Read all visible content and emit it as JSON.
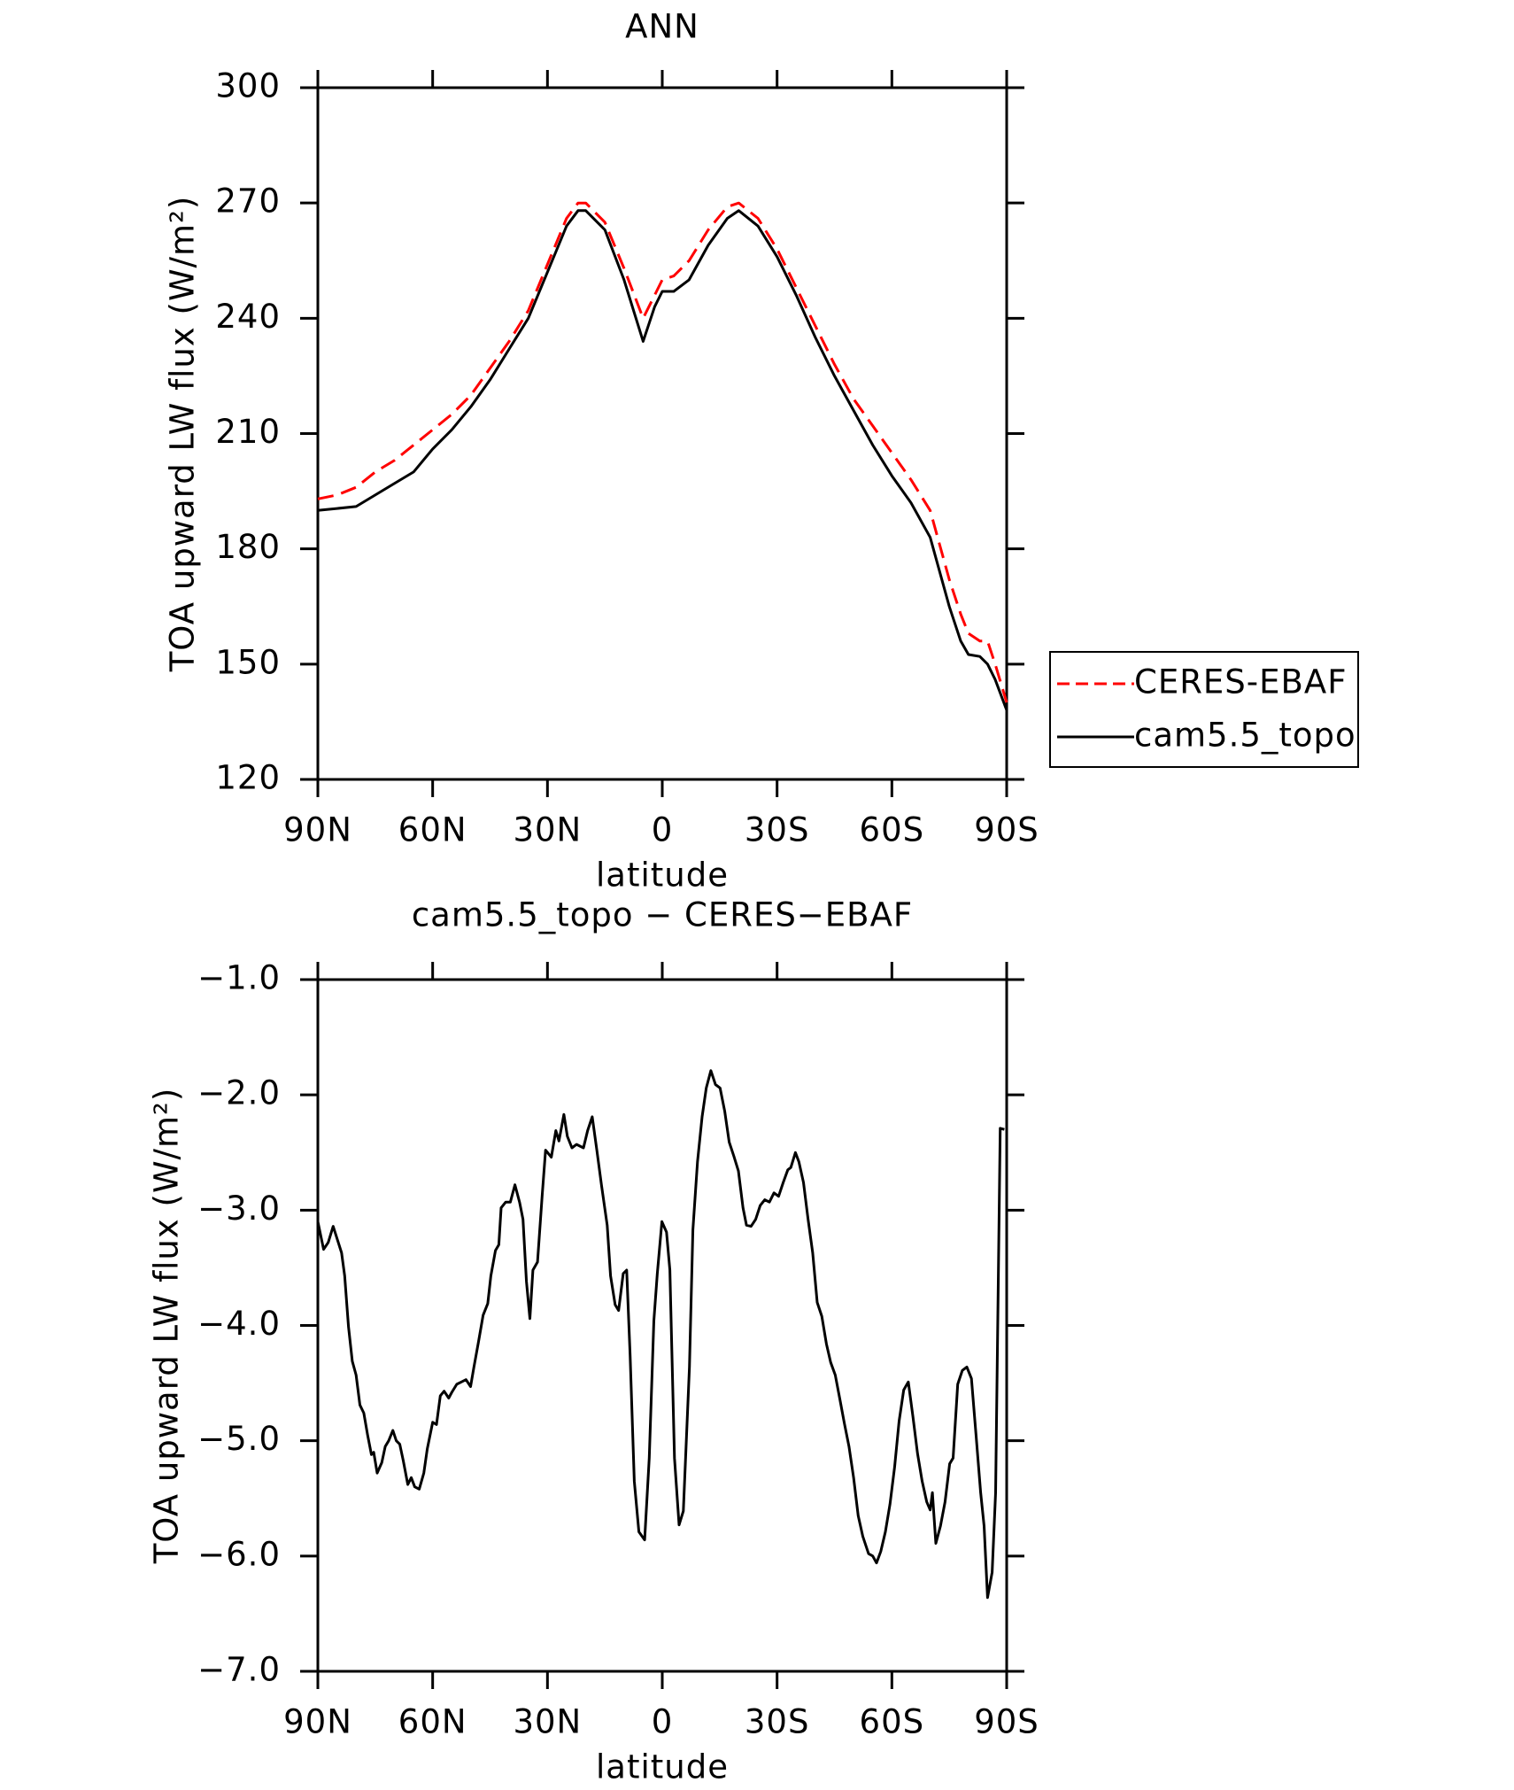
{
  "chart_data": [
    {
      "type": "line",
      "title": "ANN",
      "xlabel": "latitude",
      "ylabel": "TOA upward LW flux (W/m²)",
      "xlim": [
        90,
        -90
      ],
      "ylim": [
        120,
        300
      ],
      "xticks": [
        {
          "value": 90,
          "label": "90N"
        },
        {
          "value": 60,
          "label": "60N"
        },
        {
          "value": 30,
          "label": "30N"
        },
        0,
        {
          "value": -30,
          "label": "30S"
        },
        {
          "value": -60,
          "label": "60S"
        },
        {
          "value": -90,
          "label": "90S"
        }
      ],
      "yticks": [
        120,
        150,
        180,
        210,
        240,
        270,
        300
      ],
      "legend": "right",
      "x": [
        90,
        85,
        80,
        75,
        70,
        65,
        60,
        55,
        50,
        45,
        40,
        35,
        30,
        25,
        22,
        20,
        15,
        10,
        5,
        2,
        0,
        -3,
        -7,
        -12,
        -17,
        -20,
        -25,
        -30,
        -35,
        -40,
        -45,
        -50,
        -55,
        -60,
        -65,
        -70,
        -75,
        -78,
        -80,
        -83,
        -85,
        -87,
        -90
      ],
      "series": [
        {
          "name": "CERES-EBAF",
          "color": "#ff0000",
          "dash": true,
          "values": [
            193,
            194,
            196,
            200,
            203,
            207,
            211,
            215,
            220,
            227,
            234,
            242,
            254,
            266,
            270,
            270,
            265,
            253,
            240,
            246,
            250,
            251,
            255,
            263,
            269,
            270,
            266,
            258,
            248,
            238,
            228,
            219,
            212,
            205,
            198,
            190,
            172,
            163,
            158,
            156,
            156,
            150,
            140
          ]
        },
        {
          "name": "cam5.5_topo",
          "color": "#000000",
          "dash": false,
          "values": [
            190,
            190.5,
            191,
            194,
            197,
            200,
            206,
            211,
            217,
            224,
            232,
            240,
            252,
            264,
            268,
            268,
            263,
            250,
            234,
            243,
            247,
            247,
            250,
            259,
            266,
            268,
            264,
            256,
            246,
            235,
            225,
            216,
            207,
            199,
            192,
            183,
            165,
            156,
            152.5,
            152,
            150,
            146,
            138
          ]
        }
      ]
    },
    {
      "type": "line",
      "title": "cam5.5_topo − CERES−EBAF",
      "xlabel": "latitude",
      "ylabel": "TOA upward LW flux (W/m²)",
      "xlim": [
        90,
        -90
      ],
      "ylim": [
        -7,
        -1
      ],
      "xticks": [
        {
          "value": 90,
          "label": "90N"
        },
        {
          "value": 60,
          "label": "60N"
        },
        {
          "value": 30,
          "label": "30N"
        },
        0,
        {
          "value": -30,
          "label": "30S"
        },
        {
          "value": -60,
          "label": "60S"
        },
        {
          "value": -90,
          "label": "90S"
        }
      ],
      "yticks": [
        {
          "value": -7,
          "label": "−7.0"
        },
        {
          "value": -6,
          "label": "−6.0"
        },
        {
          "value": -5,
          "label": "−5.0"
        },
        {
          "value": -4,
          "label": "−4.0"
        },
        {
          "value": -3,
          "label": "−3.0"
        },
        {
          "value": -2,
          "label": "−2.0"
        },
        {
          "value": -1,
          "label": "−1.0"
        }
      ],
      "color": "#000000",
      "x": [
        90,
        88.5,
        87.3,
        86,
        83.8,
        83,
        82,
        81,
        80,
        79,
        78,
        77,
        76,
        75.4,
        74.5,
        73.3,
        72.4,
        71.5,
        70.4,
        69.5,
        68.6,
        67.7,
        66.5,
        65.6,
        64.7,
        63.5,
        62.3,
        61.4,
        60,
        59,
        58,
        57,
        55.8,
        55,
        53.7,
        52.5,
        51.3,
        50.1,
        49.2,
        48,
        46.8,
        45.6,
        44.8,
        43.6,
        42.7,
        42.1,
        40.9,
        39.7,
        38.5,
        37.3,
        36.4,
        35.5,
        34.6,
        33.8,
        32.6,
        31.4,
        30.5,
        29,
        27.8,
        27,
        25.7,
        24.8,
        23.6,
        22.4,
        20.6,
        19.5,
        18.3,
        17.1,
        15.9,
        14.4,
        13.5,
        12.3,
        11.4,
        10.2,
        9.3,
        8.4,
        7.3,
        6.1,
        4.6,
        3.4,
        2.2,
        1.3,
        0.1,
        -1.1,
        -2,
        -3.2,
        -4.4,
        -5.5,
        -7.1,
        -8,
        -9.2,
        -10.4,
        -11.5,
        -12.7,
        -13.9,
        -15.1,
        -16.3,
        -17.5,
        -18.7,
        -19.9,
        -21.1,
        -22,
        -23.2,
        -24.4,
        -25.6,
        -26.8,
        -28,
        -29.2,
        -30.4,
        -31.6,
        -32.8,
        -33.6,
        -34.8,
        -35.7,
        -36.9,
        -38.1,
        -39.3,
        -40.5,
        -41.7,
        -42.9,
        -44,
        -45.2,
        -46.4,
        -47.6,
        -48.8,
        -50,
        -51.2,
        -52.4,
        -53.9,
        -55,
        -56,
        -57.1,
        -58.3,
        -59.5,
        -60.7,
        -61.9,
        -63.1,
        -64.3,
        -65.5,
        -66.7,
        -67.9,
        -69.1,
        -70,
        -70.6,
        -71.5,
        -72.7,
        -73.9,
        -75.1,
        -76,
        -77.2,
        -78.4,
        -79.6,
        -80.8,
        -82,
        -83.2,
        -84.1,
        -85,
        -86.2,
        -87.1,
        -88.3,
        -89.4
      ],
      "values": [
        -3.1,
        -3.34,
        -3.28,
        -3.14,
        -3.37,
        -3.57,
        -4.01,
        -4.31,
        -4.43,
        -4.69,
        -4.76,
        -4.95,
        -5.12,
        -5.1,
        -5.28,
        -5.19,
        -5.05,
        -5,
        -4.91,
        -5,
        -5.03,
        -5.17,
        -5.38,
        -5.32,
        -5.4,
        -5.42,
        -5.28,
        -5.07,
        -4.84,
        -4.86,
        -4.61,
        -4.57,
        -4.63,
        -4.58,
        -4.51,
        -4.49,
        -4.47,
        -4.53,
        -4.36,
        -4.14,
        -3.91,
        -3.81,
        -3.57,
        -3.35,
        -3.3,
        -2.98,
        -2.93,
        -2.93,
        -2.78,
        -2.93,
        -3.08,
        -3.62,
        -3.94,
        -3.52,
        -3.45,
        -2.88,
        -2.48,
        -2.54,
        -2.31,
        -2.4,
        -2.17,
        -2.36,
        -2.46,
        -2.43,
        -2.46,
        -2.31,
        -2.19,
        -2.48,
        -2.78,
        -3.13,
        -3.57,
        -3.82,
        -3.87,
        -3.55,
        -3.52,
        -4.26,
        -5.35,
        -5.79,
        -5.86,
        -5.15,
        -3.96,
        -3.55,
        -3.1,
        -3.19,
        -3.52,
        -5.15,
        -5.73,
        -5.61,
        -4.36,
        -3.17,
        -2.58,
        -2.19,
        -1.94,
        -1.79,
        -1.91,
        -1.94,
        -2.14,
        -2.41,
        -2.53,
        -2.66,
        -2.98,
        -3.13,
        -3.14,
        -3.08,
        -2.96,
        -2.91,
        -2.93,
        -2.85,
        -2.88,
        -2.76,
        -2.65,
        -2.63,
        -2.5,
        -2.58,
        -2.76,
        -3.08,
        -3.37,
        -3.8,
        -3.92,
        -4.16,
        -4.32,
        -4.43,
        -4.64,
        -4.85,
        -5.05,
        -5.32,
        -5.65,
        -5.83,
        -5.98,
        -6,
        -6.06,
        -5.96,
        -5.79,
        -5.55,
        -5.23,
        -4.83,
        -4.56,
        -4.49,
        -4.79,
        -5.11,
        -5.35,
        -5.53,
        -5.6,
        -5.45,
        -5.89,
        -5.74,
        -5.53,
        -5.2,
        -5.15,
        -4.51,
        -4.39,
        -4.36,
        -4.46,
        -4.95,
        -5.45,
        -5.74,
        -6.36,
        -6.14,
        -5.45,
        -2.29,
        -2.3
      ]
    }
  ]
}
